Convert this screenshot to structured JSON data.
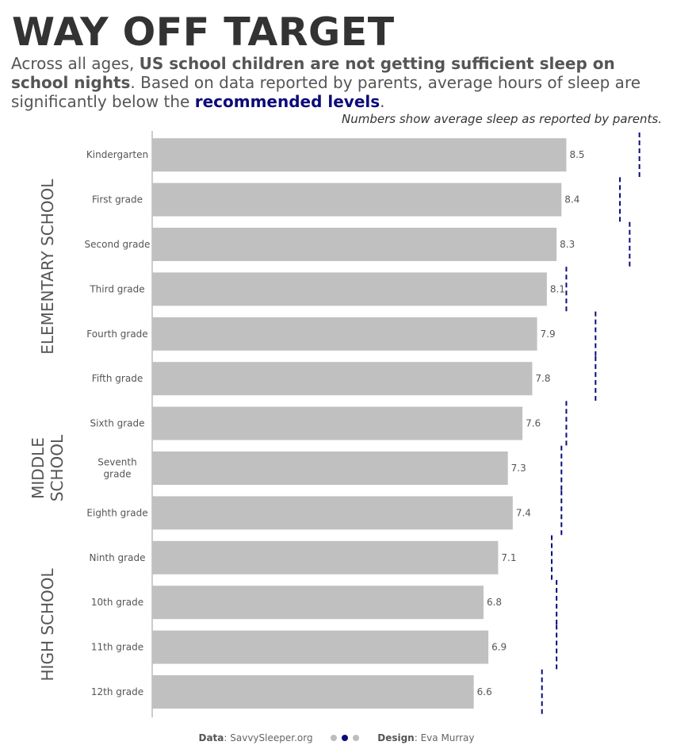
{
  "header": {
    "title": "WAY OFF TARGET",
    "sub_1": "Across all ages, ",
    "sub_2": "US school children are not getting sufficient sleep on school nights",
    "sub_3": ". Based on data reported by parents, average hours of sleep are significantly below the ",
    "sub_4": "recommended levels",
    "sub_5": ".",
    "note": "Numbers show average sleep as reported by parents."
  },
  "footer": {
    "data_label": "Data",
    "data_value": ": SavvySleeper.org",
    "design_label": "Design",
    "design_value": ": Eva Murray"
  },
  "colors": {
    "bar": "#c0c0c0",
    "target": "#0b0b7a",
    "text": "#555555"
  },
  "chart_data": {
    "type": "bar",
    "orientation": "horizontal",
    "categories": [
      "Kindergarten",
      "First grade",
      "Second grade",
      "Third grade",
      "Fourth grade",
      "Fifth grade",
      "Sixth grade",
      "Seventh grade",
      "Eighth grade",
      "Ninth grade",
      "10th grade",
      "11th grade",
      "12th grade"
    ],
    "values": [
      8.5,
      8.4,
      8.3,
      8.1,
      7.9,
      7.8,
      7.6,
      7.3,
      7.4,
      7.1,
      6.8,
      6.9,
      6.6
    ],
    "value_labels": [
      "8.5",
      "8.4",
      "8.3",
      "8.1",
      "7.9",
      "7.8",
      "7.6",
      "7.3",
      "7.4",
      "7.1",
      "6.8",
      "6.9",
      "6.6"
    ],
    "recommended": [
      10.0,
      9.6,
      9.8,
      8.5,
      9.1,
      9.1,
      8.5,
      8.4,
      8.4,
      8.2,
      8.3,
      8.3,
      8.0
    ],
    "category_lines": [
      [
        "Kindergarten"
      ],
      [
        "First grade"
      ],
      [
        "Second grade"
      ],
      [
        "Third grade"
      ],
      [
        "Fourth grade"
      ],
      [
        "Fifth grade"
      ],
      [
        "Sixth grade"
      ],
      [
        "Seventh",
        "grade"
      ],
      [
        "Eighth grade"
      ],
      [
        "Ninth grade"
      ],
      [
        "10th grade"
      ],
      [
        "11th grade"
      ],
      [
        "12th grade"
      ]
    ],
    "groups": [
      {
        "lines": [
          "ELEMENTARY SCHOOL"
        ],
        "start": 0,
        "end": 5
      },
      {
        "lines": [
          "MIDDLE",
          "SCHOOL"
        ],
        "start": 6,
        "end": 8
      },
      {
        "lines": [
          "HIGH SCHOOL"
        ],
        "start": 9,
        "end": 12
      }
    ],
    "xlim": [
      0,
      10.25
    ]
  }
}
